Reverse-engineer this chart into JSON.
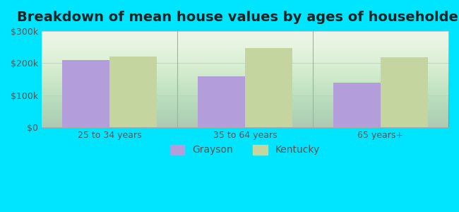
{
  "title": "Breakdown of mean house values by ages of householders",
  "categories": [
    "25 to 34 years",
    "35 to 64 years",
    "65 years+"
  ],
  "grayson_values": [
    210000,
    158000,
    140000
  ],
  "kentucky_values": [
    220000,
    248000,
    218000
  ],
  "grayson_color": "#b39ddb",
  "kentucky_color": "#c5d5a0",
  "background_outer": "#00e5ff",
  "background_inner_top": "#e8f5e9",
  "background_inner_bottom": "#f5fff5",
  "ylim": [
    0,
    300000
  ],
  "yticks": [
    0,
    100000,
    200000,
    300000
  ],
  "ytick_labels": [
    "$0",
    "$100k",
    "$200k",
    "$300k"
  ],
  "legend_labels": [
    "Grayson",
    "Kentucky"
  ],
  "title_fontsize": 14,
  "tick_fontsize": 9,
  "legend_fontsize": 10,
  "bar_width": 0.35,
  "group_positions": [
    1,
    2,
    3
  ]
}
